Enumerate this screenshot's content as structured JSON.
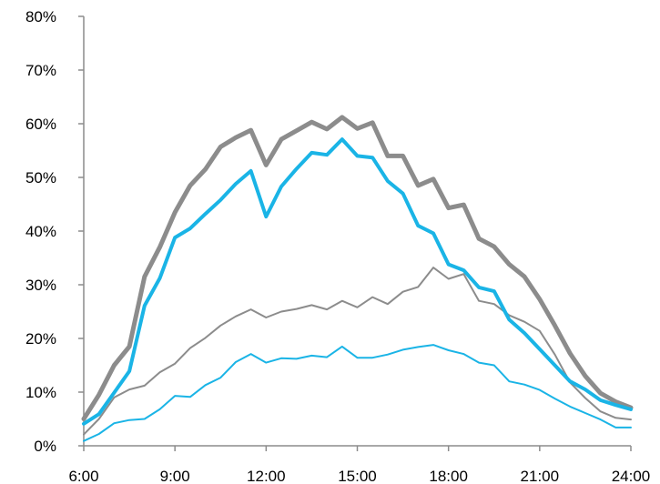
{
  "chart_data": {
    "type": "line",
    "title": "",
    "xlabel": "",
    "ylabel": "",
    "x_tick_labels": [
      "6:00",
      "9:00",
      "12:00",
      "15:00",
      "18:00",
      "21:00",
      "24:00"
    ],
    "y_tick_labels": [
      "0%",
      "10%",
      "20%",
      "30%",
      "40%",
      "50%",
      "60%",
      "70%",
      "80%"
    ],
    "xlim": [
      6,
      24
    ],
    "ylim": [
      0,
      80
    ],
    "grid": false,
    "legend": "none",
    "x": [
      6.0,
      6.5,
      7.0,
      7.5,
      8.0,
      8.5,
      9.0,
      9.5,
      10.0,
      10.5,
      11.0,
      11.5,
      12.0,
      12.5,
      13.0,
      13.5,
      14.0,
      14.5,
      15.0,
      15.5,
      16.0,
      16.5,
      17.0,
      17.5,
      18.0,
      18.5,
      19.0,
      19.5,
      20.0,
      20.5,
      21.0,
      21.5,
      22.0,
      22.5,
      23.0,
      23.5,
      24.0
    ],
    "series": [
      {
        "color": "#8c8c8c",
        "line_width": 5,
        "values": [
          5.0,
          9.5,
          15.0,
          18.5,
          31.5,
          37.0,
          43.5,
          48.5,
          51.5,
          55.7,
          57.4,
          58.8,
          52.3,
          57.1,
          58.7,
          60.3,
          59.0,
          61.2,
          59.1,
          60.2,
          54.0,
          54.0,
          48.5,
          49.7,
          44.3,
          44.9,
          38.6,
          37.1,
          33.8,
          31.5,
          27.3,
          22.4,
          17.2,
          13.0,
          9.8,
          8.2,
          7.1
        ]
      },
      {
        "color": "#1ab4e6",
        "line_width": 4,
        "values": [
          4.1,
          5.9,
          9.9,
          13.9,
          26.1,
          31.2,
          38.8,
          40.5,
          43.2,
          45.8,
          48.8,
          51.2,
          42.7,
          48.3,
          51.6,
          54.6,
          54.2,
          57.1,
          54.0,
          53.7,
          49.3,
          47.0,
          41.0,
          39.6,
          33.8,
          32.7,
          29.5,
          28.8,
          23.5,
          21.0,
          18.0,
          15.0,
          12.0,
          10.5,
          8.5,
          7.6,
          6.8
        ]
      },
      {
        "color": "#8c8c8c",
        "line_width": 2,
        "values": [
          2.1,
          5.0,
          9.0,
          10.5,
          11.2,
          13.7,
          15.3,
          18.2,
          20.1,
          22.4,
          24.1,
          25.4,
          23.9,
          25.0,
          25.5,
          26.2,
          25.4,
          27.0,
          25.8,
          27.7,
          26.4,
          28.7,
          29.6,
          33.2,
          31.1,
          32.0,
          27.0,
          26.4,
          24.3,
          23.1,
          21.4,
          17.0,
          11.8,
          8.9,
          6.4,
          5.2,
          4.9
        ]
      },
      {
        "color": "#1ab4e6",
        "line_width": 2,
        "values": [
          0.9,
          2.2,
          4.2,
          4.8,
          5.0,
          6.8,
          9.3,
          9.1,
          11.3,
          12.7,
          15.6,
          17.1,
          15.5,
          16.3,
          16.2,
          16.8,
          16.5,
          18.5,
          16.4,
          16.4,
          17.0,
          17.9,
          18.4,
          18.8,
          17.8,
          17.1,
          15.5,
          15.0,
          12.0,
          11.4,
          10.4,
          8.8,
          7.3,
          6.1,
          4.9,
          3.4,
          3.4
        ]
      }
    ]
  }
}
